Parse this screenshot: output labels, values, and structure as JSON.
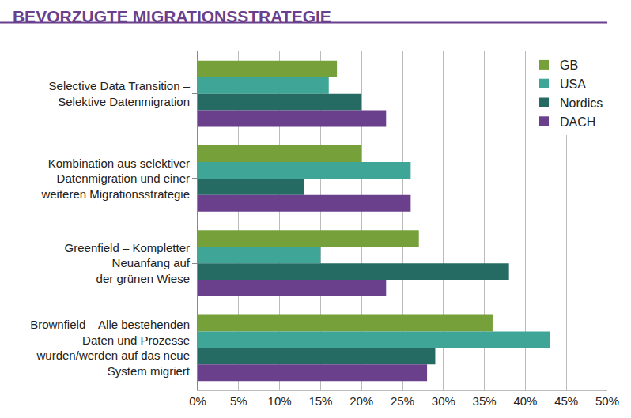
{
  "chart_data": {
    "type": "bar",
    "orientation": "horizontal",
    "title": "BEVORZUGTE MIGRATIONSSTRATEGIE",
    "categories": [
      "Selective Data Transition –\nSelektive Datenmigration",
      "Kombination aus selektiver\nDatenmigration und einer\nweiteren Migrationsstrategie",
      "Greenfield – Kompletter\nNeuanfang auf\nder grünen Wiese",
      "Brownfield – Alle bestehenden\nDaten und Prozesse\nwurden/werden auf das neue\nSystem migriert"
    ],
    "series": [
      {
        "name": "GB",
        "color": "#76a13a",
        "values": [
          17,
          20,
          27,
          36
        ]
      },
      {
        "name": "USA",
        "color": "#3fa596",
        "values": [
          16,
          26,
          15,
          43
        ]
      },
      {
        "name": "Nordics",
        "color": "#256b63",
        "values": [
          20,
          13,
          38,
          29
        ]
      },
      {
        "name": "DACH",
        "color": "#6a3f8c",
        "values": [
          23,
          26,
          23,
          28
        ]
      }
    ],
    "xlim": [
      0,
      50
    ],
    "xticks": [
      {
        "value": 0,
        "label": "0%"
      },
      {
        "value": 5,
        "label": "5%"
      },
      {
        "value": 10,
        "label": "10%"
      },
      {
        "value": 15,
        "label": "15%"
      },
      {
        "value": 20,
        "label": "20%"
      },
      {
        "value": 25,
        "label": "25%"
      },
      {
        "value": 30,
        "label": "30%"
      },
      {
        "value": 35,
        "label": "35%"
      },
      {
        "value": 40,
        "label": "40%"
      },
      {
        "value": 45,
        "label": "45%"
      },
      {
        "value": 50,
        "label": "50%"
      }
    ],
    "grid": true,
    "legend": "top-right"
  }
}
